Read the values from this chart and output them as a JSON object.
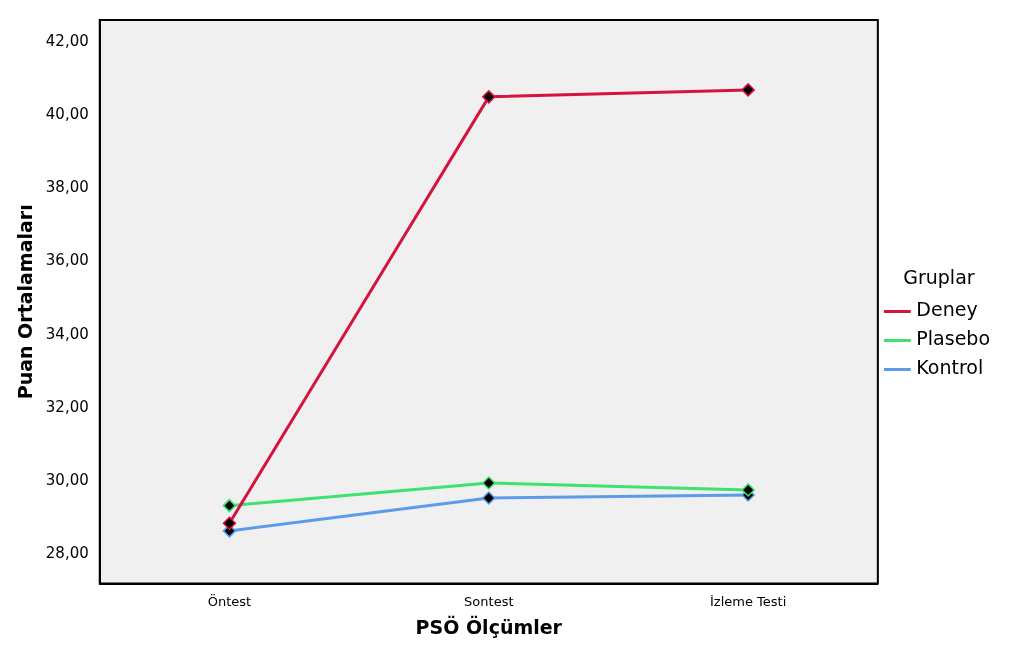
{
  "chart_data": {
    "type": "line",
    "xlabel": "PSÖ Ölçümler",
    "ylabel": "Puan Ortalamaları",
    "legend_title": "Gruplar",
    "categories": [
      "Öntest",
      "Sontest",
      "İzleme Testi"
    ],
    "series": [
      {
        "name": "Deney",
        "color": "#d6133f",
        "values": [
          28.85,
          40.5,
          40.69
        ]
      },
      {
        "name": "Plasebo",
        "color": "#3de26f",
        "values": [
          29.33,
          29.95,
          29.76
        ]
      },
      {
        "name": "Kontrol",
        "color": "#5b9bea",
        "values": [
          28.64,
          29.54,
          29.62
        ]
      }
    ],
    "ylim": [
      27.2,
      42.6
    ],
    "yticks": [
      {
        "value": 28,
        "label": "28,00"
      },
      {
        "value": 30,
        "label": "30,00"
      },
      {
        "value": 32,
        "label": "32,00"
      },
      {
        "value": 34,
        "label": "34,00"
      },
      {
        "value": 36,
        "label": "36,00"
      },
      {
        "value": 38,
        "label": "38,00"
      },
      {
        "value": 40,
        "label": "40,00"
      },
      {
        "value": 42,
        "label": "42,00"
      }
    ],
    "marker": "diamond",
    "legend": "right",
    "grid": false
  }
}
